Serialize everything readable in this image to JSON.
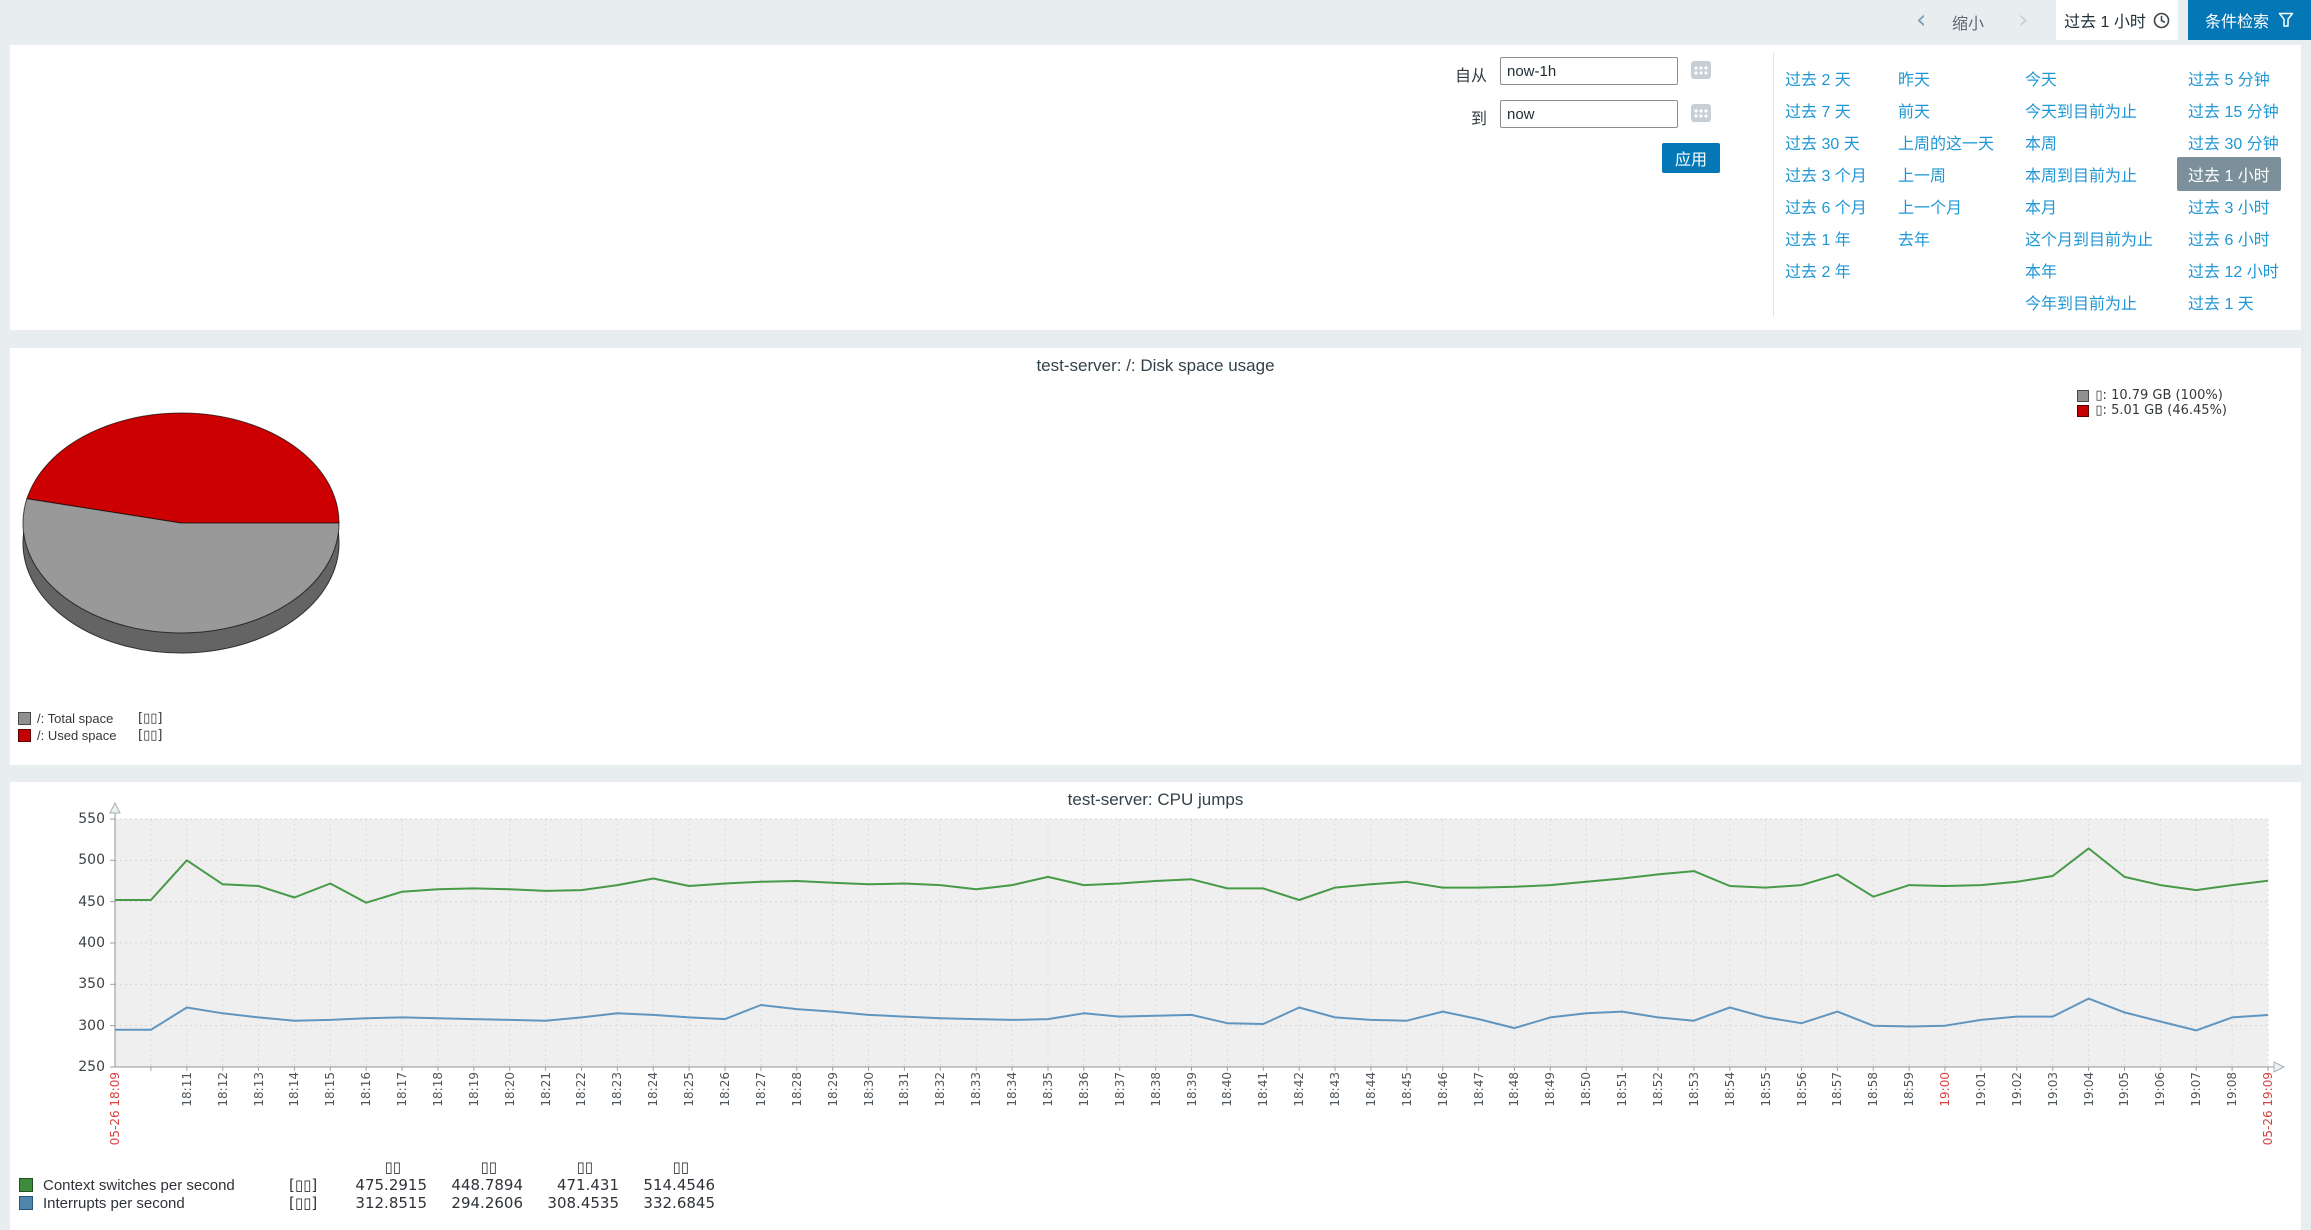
{
  "topbar": {
    "chevron_left": "‹",
    "zoom_out_label": "缩小",
    "chevron_right": "›",
    "time_tab_label": "过去 1 小时",
    "filter_button_label": "条件检索"
  },
  "filter": {
    "from_label": "自从",
    "from_value": "now-1h",
    "to_label": "到",
    "to_value": "now",
    "apply_label": "应用",
    "quick_ranges": {
      "columns": [
        [
          "过去 2 天",
          "过去 7 天",
          "过去 30 天",
          "过去 3 个月",
          "过去 6 个月",
          "过去 1 年",
          "过去 2 年"
        ],
        [
          "昨天",
          "前天",
          "上周的这一天",
          "上一周",
          "上一个月",
          "去年"
        ],
        [
          "今天",
          "今天到目前为止",
          "本周",
          "本周到目前为止",
          "本月",
          "这个月到目前为止",
          "本年",
          "今年到目前为止"
        ],
        [
          "过去 5 分钟",
          "过去 15 分钟",
          "过去 30 分钟",
          "过去 1 小时",
          "过去 3 小时",
          "过去 6 小时",
          "过去 12 小时",
          "过去 1 天"
        ]
      ],
      "selected": "过去 1 小时"
    }
  },
  "chart_data": [
    {
      "type": "pie",
      "title": "test-server: /: Disk space usage",
      "legend_top": [
        {
          "swatch": "#909090",
          "border": "#4a4a4a",
          "label": "▯: 10.79 GB (100%)"
        },
        {
          "swatch": "#c40000",
          "border": "#5a0000",
          "label": "▯: 5.01 GB (46.45%)"
        }
      ],
      "legend_bottom": [
        {
          "swatch": "#909090",
          "border": "#4a4a4a",
          "label": "/: Total space",
          "tag": "[▯▯]"
        },
        {
          "swatch": "#c40000",
          "border": "#5a0000",
          "label": "/: Used space",
          "tag": "[▯▯]"
        }
      ],
      "slices": [
        {
          "name": "/: Used space",
          "percent": 46.45,
          "color": "#cc0000"
        },
        {
          "name": "/: Total space (free part)",
          "percent": 53.55,
          "color": "#999999"
        }
      ],
      "values": {
        "total_gb": "10.79",
        "used_gb": "5.01",
        "used_percent": "46.45"
      }
    },
    {
      "type": "line",
      "title": "test-server: CPU jumps",
      "ylim": [
        250,
        550
      ],
      "yticks": [
        550,
        500,
        450,
        400,
        350,
        300,
        250
      ],
      "grid": true,
      "legend_position": "bottom",
      "x_ticks": [
        "05-26 18:09",
        "",
        "18:11",
        "18:12",
        "18:13",
        "18:14",
        "18:15",
        "18:16",
        "18:17",
        "18:18",
        "18:19",
        "18:20",
        "18:21",
        "18:22",
        "18:23",
        "18:24",
        "18:25",
        "18:26",
        "18:27",
        "18:28",
        "18:29",
        "18:30",
        "18:31",
        "18:32",
        "18:33",
        "18:34",
        "18:35",
        "18:36",
        "18:37",
        "18:38",
        "18:39",
        "18:40",
        "18:41",
        "18:42",
        "18:43",
        "18:44",
        "18:45",
        "18:46",
        "18:47",
        "18:48",
        "18:49",
        "18:50",
        "18:51",
        "18:52",
        "18:53",
        "18:54",
        "18:55",
        "18:56",
        "18:57",
        "18:58",
        "18:59",
        "19:00",
        "19:01",
        "19:02",
        "19:03",
        "19:04",
        "19:05",
        "19:06",
        "19:07",
        "19:08",
        "05-26 19:09"
      ],
      "x_red": [
        "05-26 18:09",
        "19:00",
        "05-26 19:09"
      ],
      "stats_headers": [
        "▯▯",
        "▯▯",
        "▯▯",
        "▯▯"
      ],
      "series": [
        {
          "name": "Context switches per second",
          "color": "#479a47",
          "swatch": "#3c8c3c",
          "swatch_border": "#225022",
          "tag": "[▯▯]",
          "stats": [
            "475.2915",
            "448.7894",
            "471.431",
            "514.4546"
          ],
          "values": [
            452,
            452,
            500,
            471,
            469,
            455,
            472,
            448.7894,
            462,
            465,
            466,
            465,
            463,
            464,
            470,
            478,
            469,
            472,
            474,
            475,
            473,
            471,
            472,
            470,
            465,
            470,
            480,
            470,
            472,
            475,
            477,
            466,
            466,
            452,
            467,
            471,
            474,
            467,
            467,
            468,
            470,
            474,
            478,
            483,
            487,
            469,
            467,
            470,
            483,
            456,
            470,
            469,
            470,
            474,
            481,
            514.4546,
            480,
            470,
            464,
            470,
            475.2915
          ]
        },
        {
          "name": "Interrupts per second",
          "color": "#6095bf",
          "swatch": "#4e86ad",
          "swatch_border": "#2b5574",
          "tag": "[▯▯]",
          "stats": [
            "312.8515",
            "294.2606",
            "308.4535",
            "332.6845"
          ],
          "values": [
            295,
            295,
            322,
            315,
            310,
            306,
            307,
            309,
            310,
            309,
            308,
            307,
            306,
            310,
            315,
            313,
            310,
            308,
            325,
            320,
            317,
            313,
            311,
            309,
            308,
            307,
            308,
            315,
            311,
            312,
            313,
            303,
            302,
            322,
            310,
            307,
            306,
            317,
            308,
            297,
            310,
            315,
            317,
            310,
            306,
            322,
            310,
            303,
            317,
            300,
            299,
            300,
            307,
            311,
            311,
            332.6845,
            316,
            305,
            294.2606,
            310,
            312.8515
          ]
        }
      ]
    }
  ]
}
